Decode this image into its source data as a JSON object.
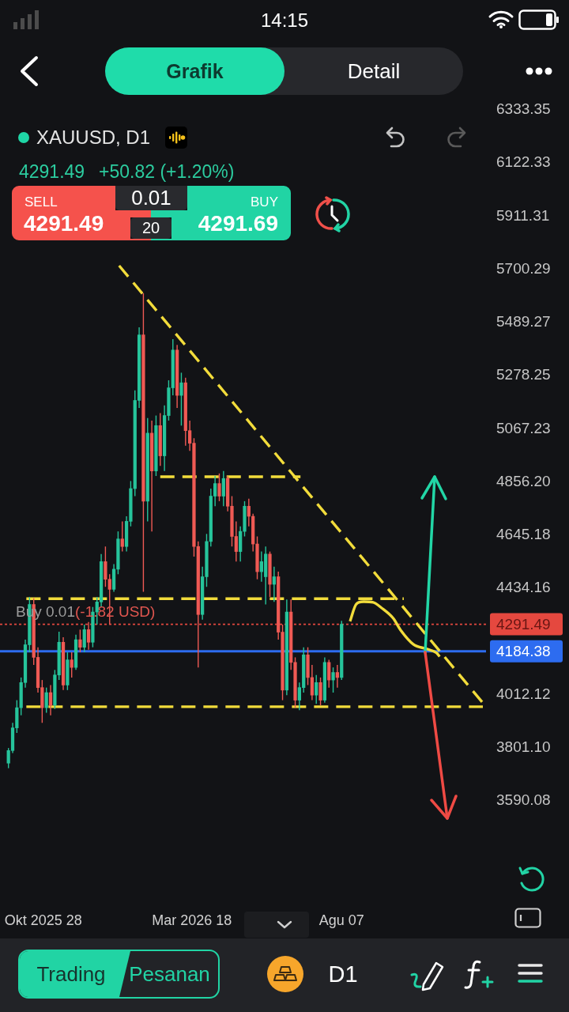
{
  "chart_data": {
    "type": "candlestick",
    "title": "XAUUSD, D1",
    "annotations": [
      "14:15",
      "Grafik",
      "Detail",
      "4291.49",
      "+50.82 (+1.20%)",
      "SELL",
      "4291.49",
      "0.01",
      "20",
      "BUY",
      "4291.69",
      "Buy 0.01",
      "(-1.82 USD)",
      "Trading",
      "Pesanan",
      "D1"
    ],
    "x": [
      "2025-09-25",
      "2025-09-29",
      "2025-10-03",
      "2025-10-07",
      "2025-10-11",
      "2025-10-15",
      "2025-10-19",
      "2025-10-23",
      "2025-10-27",
      "2025-10-31",
      "2025-11-04",
      "2025-11-08",
      "2025-11-12",
      "2025-11-16",
      "2025-11-20",
      "2025-11-24",
      "2025-11-28",
      "2025-12-02",
      "2025-12-06",
      "2025-12-10",
      "2025-12-14",
      "2025-12-18",
      "2025-12-22",
      "2025-12-26",
      "2025-12-30",
      "2026-01-03",
      "2026-01-07",
      "2026-01-11",
      "2026-01-15",
      "2026-01-19",
      "2026-01-23",
      "2026-01-27",
      "2026-01-31",
      "2026-02-04",
      "2026-02-08",
      "2026-02-12",
      "2026-02-16",
      "2026-02-20",
      "2026-02-24",
      "2026-02-28",
      "2026-03-04",
      "2026-03-08",
      "2026-03-12",
      "2026-03-16",
      "2026-03-20",
      "2026-03-24",
      "2026-03-28",
      "2026-04-01",
      "2026-04-05",
      "2026-04-09",
      "2026-04-13",
      "2026-04-17",
      "2026-04-21",
      "2026-04-25",
      "2026-04-29",
      "2026-05-03",
      "2026-05-07",
      "2026-05-11",
      "2026-05-15",
      "2026-05-19",
      "2026-05-23",
      "2026-05-27",
      "2026-05-31",
      "2026-06-04",
      "2026-06-08",
      "2026-06-12",
      "2026-06-16",
      "2026-06-20",
      "2026-06-24",
      "2026-06-28",
      "2026-07-02",
      "2026-07-06",
      "2026-07-10",
      "2026-07-14",
      "2026-07-18",
      "2026-07-22",
      "2026-07-26",
      "2026-07-30",
      "2026-08-03",
      "2026-08-07"
    ],
    "ohlc": [
      [
        3740,
        3800,
        3720,
        3790
      ],
      [
        3790,
        3900,
        3780,
        3880
      ],
      [
        3880,
        3990,
        3860,
        3960
      ],
      [
        3960,
        4080,
        3930,
        4060
      ],
      [
        4060,
        4230,
        4040,
        4210
      ],
      [
        4210,
        4400,
        4180,
        4370
      ],
      [
        4370,
        4395,
        4130,
        4160
      ],
      [
        4160,
        4200,
        4020,
        4040
      ],
      [
        4040,
        4070,
        3900,
        3960
      ],
      [
        3960,
        4040,
        3940,
        4020
      ],
      [
        4020,
        4050,
        3930,
        3970
      ],
      [
        3970,
        4110,
        3955,
        4090
      ],
      [
        4090,
        4262,
        4070,
        4220
      ],
      [
        4220,
        4240,
        4030,
        4050
      ],
      [
        4050,
        4180,
        4030,
        4150
      ],
      [
        4150,
        4180,
        4080,
        4120
      ],
      [
        4120,
        4250,
        4110,
        4230
      ],
      [
        4230,
        4270,
        4180,
        4200
      ],
      [
        4200,
        4290,
        4180,
        4270
      ],
      [
        4270,
        4300,
        4190,
        4220
      ],
      [
        4220,
        4360,
        4200,
        4340
      ],
      [
        4340,
        4400,
        4290,
        4380
      ],
      [
        4380,
        4570,
        4360,
        4540
      ],
      [
        4540,
        4600,
        4440,
        4470
      ],
      [
        4470,
        4490,
        4290,
        4430
      ],
      [
        4430,
        4530,
        4420,
        4510
      ],
      [
        4510,
        4660,
        4490,
        4630
      ],
      [
        4630,
        4700,
        4580,
        4600
      ],
      [
        4600,
        4720,
        4580,
        4700
      ],
      [
        4700,
        4860,
        4680,
        4830
      ],
      [
        4830,
        5220,
        4800,
        5180
      ],
      [
        5180,
        5470,
        5150,
        5440
      ],
      [
        5440,
        5605,
        4420,
        4780
      ],
      [
        4780,
        5110,
        4700,
        5050
      ],
      [
        5050,
        5100,
        4660,
        4900
      ],
      [
        4900,
        5120,
        4880,
        5080
      ],
      [
        5080,
        5130,
        4920,
        4960
      ],
      [
        4960,
        5160,
        4900,
        5120
      ],
      [
        5120,
        5260,
        5100,
        5230
      ],
      [
        5230,
        5423,
        5200,
        5380
      ],
      [
        5380,
        5400,
        5150,
        5200
      ],
      [
        5200,
        5290,
        5080,
        5250
      ],
      [
        5250,
        5270,
        5000,
        5060
      ],
      [
        5060,
        5100,
        4980,
        5010
      ],
      [
        5010,
        5030,
        4560,
        4600
      ],
      [
        4600,
        4620,
        4120,
        4330
      ],
      [
        4330,
        4520,
        4310,
        4480
      ],
      [
        4480,
        4650,
        4440,
        4620
      ],
      [
        4620,
        4830,
        4600,
        4800
      ],
      [
        4800,
        4880,
        4760,
        4850
      ],
      [
        4850,
        4890,
        4780,
        4800
      ],
      [
        4800,
        4900,
        4760,
        4870
      ],
      [
        4870,
        4880,
        4740,
        4760
      ],
      [
        4760,
        4800,
        4600,
        4640
      ],
      [
        4640,
        4700,
        4540,
        4580
      ],
      [
        4580,
        4680,
        4540,
        4660
      ],
      [
        4660,
        4780,
        4640,
        4760
      ],
      [
        4760,
        4790,
        4680,
        4720
      ],
      [
        4720,
        4730,
        4580,
        4610
      ],
      [
        4610,
        4640,
        4470,
        4500
      ],
      [
        4500,
        4580,
        4460,
        4540
      ],
      [
        4480,
        4600,
        4370,
        4570
      ],
      [
        4570,
        4580,
        4400,
        4450
      ],
      [
        4450,
        4520,
        4380,
        4480
      ],
      [
        4480,
        4500,
        4230,
        4260
      ],
      [
        4260,
        4290,
        3990,
        4030
      ],
      [
        4030,
        4390,
        4010,
        4340
      ],
      [
        4340,
        4390,
        4110,
        4140
      ],
      [
        4140,
        4160,
        3960,
        3990
      ],
      [
        3990,
        4060,
        3950,
        4040
      ],
      [
        4040,
        4200,
        4020,
        4170
      ],
      [
        4170,
        4200,
        4050,
        4080
      ],
      [
        4080,
        4130,
        3990,
        4010
      ],
      [
        4010,
        4090,
        3975,
        4060
      ],
      [
        4060,
        4080,
        3970,
        3990
      ],
      [
        3990,
        4160,
        3980,
        4140
      ],
      [
        4140,
        4150,
        4040,
        4070
      ],
      [
        4070,
        4120,
        4020,
        4100
      ],
      [
        4100,
        4130,
        4040,
        4080
      ],
      [
        4080,
        4305,
        4070,
        4291.49
      ]
    ],
    "colors": [
      "#26c49b",
      "#26c49b",
      "#26c49b",
      "#26c49b",
      "#26c49b",
      "#26c49b",
      "#ef5a54",
      "#ef5a54",
      "#ef5a54",
      "#26c49b",
      "#ef5a54",
      "#26c49b",
      "#26c49b",
      "#ef5a54",
      "#26c49b",
      "#ef5a54",
      "#26c49b",
      "#ef5a54",
      "#26c49b",
      "#ef5a54",
      "#26c49b",
      "#26c49b",
      "#26c49b",
      "#ef5a54",
      "#ef5a54",
      "#26c49b",
      "#26c49b",
      "#ef5a54",
      "#26c49b",
      "#26c49b",
      "#26c49b",
      "#26c49b",
      "#ef5a54",
      "#26c49b",
      "#ef5a54",
      "#26c49b",
      "#ef5a54",
      "#26c49b",
      "#26c49b",
      "#26c49b",
      "#ef5a54",
      "#26c49b",
      "#ef5a54",
      "#ef5a54",
      "#ef5a54",
      "#ef5a54",
      "#26c49b",
      "#26c49b",
      "#26c49b",
      "#26c49b",
      "#ef5a54",
      "#26c49b",
      "#ef5a54",
      "#ef5a54",
      "#ef5a54",
      "#26c49b",
      "#26c49b",
      "#ef5a54",
      "#ef5a54",
      "#ef5a54",
      "#26c49b",
      "#26c49b",
      "#ef5a54",
      "#26c49b",
      "#ef5a54",
      "#ef5a54",
      "#26c49b",
      "#ef5a54",
      "#ef5a54",
      "#26c49b",
      "#26c49b",
      "#ef5a54",
      "#ef5a54",
      "#26c49b",
      "#ef5a54",
      "#26c49b",
      "#ef5a54",
      "#26c49b",
      "#ef5a54",
      "#26c49b"
    ],
    "xlim": [
      "2025-09-17",
      "2026-12-22"
    ],
    "xticks": [
      {
        "value": "2025-10-28",
        "label": "Okt 2025 28"
      },
      {
        "value": "2026-03-18",
        "label": "Mar 2026 18"
      },
      {
        "value": "2026-08-07",
        "label": "Agu 07"
      }
    ],
    "ylim": [
      3590.08,
      6333.35
    ],
    "yticks": [
      6333.35,
      6122.33,
      5911.31,
      5700.29,
      5489.27,
      5278.25,
      5067.23,
      {
        "value": 4856.2,
        "label": "4856.20"
      },
      4645.18,
      4434.16,
      4012.12,
      {
        "value": 3801.1,
        "label": "3801.10"
      },
      3590.08
    ],
    "series": [
      {
        "type": "line",
        "color": "#f2dc3b",
        "line_style": "dashed",
        "x": [
          "2026-01-08",
          "2026-12-19"
        ],
        "values": [
          5715,
          3979
        ]
      },
      {
        "type": "line",
        "color": "#f2dc3b",
        "line_style": "dashed",
        "x": [
          "2026-02-16",
          "2026-06-29"
        ],
        "values": [
          4877,
          4877
        ]
      },
      {
        "type": "line",
        "color": "#f2dc3b",
        "line_style": "dashed",
        "x": [
          "2025-10-12",
          "2026-10-05"
        ],
        "values": [
          4393,
          4393
        ]
      },
      {
        "type": "line",
        "color": "#f2dc3b",
        "line_style": "dashed",
        "x": [
          "2025-10-12",
          "2026-12-19"
        ],
        "values": [
          3964,
          3964
        ]
      },
      {
        "type": "line",
        "color": "#f2dc3b",
        "line_style": "solid",
        "x": [
          "2026-08-15",
          "2026-08-21",
          "2026-08-28",
          "2026-09-06",
          "2026-09-14",
          "2026-09-25",
          "2026-10-02",
          "2026-10-14",
          "2026-10-27",
          "2026-11-05",
          "2026-11-08"
        ],
        "values": [
          4303,
          4372,
          4381,
          4378,
          4356,
          4315,
          4268,
          4212,
          4193,
          4178,
          4163
        ]
      }
    ],
    "ref_lines": [
      {
        "axis": "y",
        "value": 4291.49,
        "label": "4291.49",
        "color": "#e5483f",
        "line_style": "dotted"
      },
      {
        "axis": "y",
        "value": 4184.38,
        "label": "4184.38",
        "color": "#2d6cf0",
        "line_style": "solid"
      }
    ]
  }
}
